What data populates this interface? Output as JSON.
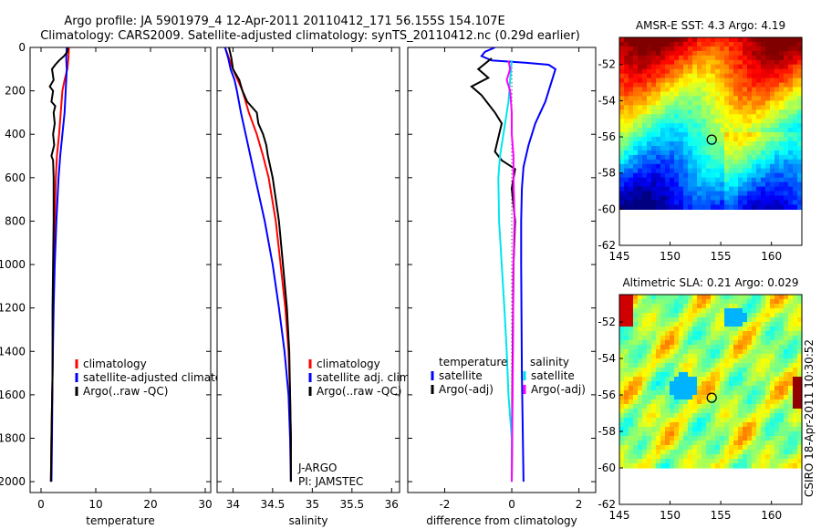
{
  "title": {
    "line1": "Argo profile: JA 5901979_4 12-Apr-2011 20110412_171 56.155S 154.107E",
    "line2": "Climatology: CARS2009. Satellite-adjusted climatology: synTS_20110412.nc (0.29d earlier)"
  },
  "side_label": "CSIRO 18-Apr-2011 10:30:52",
  "colors": {
    "climatology": "#ff0000",
    "satellite": "#0000ff",
    "argo": "#000000",
    "sal_satellite": "#00e5ee",
    "sal_argo": "#ff00ff"
  },
  "chart_data": [
    {
      "type": "line",
      "xlabel": "temperature",
      "ylabel": "",
      "xlim": [
        -2,
        31
      ],
      "ylim": [
        2050,
        0
      ],
      "x_ticks": [
        "0",
        "10",
        "20",
        "30"
      ],
      "x_tick_values": [
        0,
        10,
        20,
        30
      ],
      "y_ticks": [
        "0",
        "200",
        "400",
        "600",
        "800",
        "1000",
        "1200",
        "1400",
        "1600",
        "1800",
        "2000"
      ],
      "y_tick_values": [
        0,
        200,
        400,
        600,
        800,
        1000,
        1200,
        1400,
        1600,
        1800,
        2000
      ],
      "legend": [
        "climatology",
        "satellite-adjusted climatolo",
        "Argo(..raw -QC)"
      ],
      "series": [
        {
          "name": "climatology",
          "color": "#ff0000",
          "points": [
            [
              5.1,
              0
            ],
            [
              5.0,
              50
            ],
            [
              4.8,
              100
            ],
            [
              4.3,
              150
            ],
            [
              3.9,
              200
            ],
            [
              3.6,
              300
            ],
            [
              3.3,
              400
            ],
            [
              2.9,
              500
            ],
            [
              2.7,
              600
            ],
            [
              2.5,
              800
            ],
            [
              2.3,
              1000
            ],
            [
              2.2,
              1200
            ],
            [
              2.1,
              1500
            ],
            [
              1.9,
              1800
            ],
            [
              1.8,
              2000
            ]
          ]
        },
        {
          "name": "satellite-adjusted climatolo",
          "color": "#0000ff",
          "points": [
            [
              4.7,
              0
            ],
            [
              4.6,
              50
            ],
            [
              4.7,
              100
            ],
            [
              4.6,
              150
            ],
            [
              4.5,
              200
            ],
            [
              4.3,
              300
            ],
            [
              3.9,
              400
            ],
            [
              3.5,
              500
            ],
            [
              3.2,
              600
            ],
            [
              2.8,
              800
            ],
            [
              2.5,
              1000
            ],
            [
              2.3,
              1200
            ],
            [
              2.1,
              1500
            ],
            [
              2.0,
              1800
            ],
            [
              1.9,
              2000
            ]
          ]
        },
        {
          "name": "Argo(..raw -QC)",
          "color": "#000000",
          "points": [
            [
              4.9,
              0
            ],
            [
              4.8,
              20
            ],
            [
              4.2,
              40
            ],
            [
              3.3,
              60
            ],
            [
              2.6,
              80
            ],
            [
              2.0,
              100
            ],
            [
              2.3,
              150
            ],
            [
              1.6,
              180
            ],
            [
              2.2,
              200
            ],
            [
              1.9,
              250
            ],
            [
              2.6,
              270
            ],
            [
              2.3,
              300
            ],
            [
              2.5,
              350
            ],
            [
              2.2,
              400
            ],
            [
              2.4,
              450
            ],
            [
              1.9,
              500
            ],
            [
              2.2,
              520
            ],
            [
              2.3,
              600
            ],
            [
              2.3,
              800
            ],
            [
              2.2,
              1000
            ],
            [
              2.1,
              1200
            ],
            [
              2.1,
              1500
            ],
            [
              1.9,
              1800
            ],
            [
              1.8,
              2000
            ]
          ]
        }
      ]
    },
    {
      "type": "line",
      "xlabel": "salinity",
      "xlim": [
        33.8,
        36.1
      ],
      "ylim": [
        2050,
        0
      ],
      "x_ticks": [
        "34",
        "34.5",
        "35",
        "35.5",
        "36"
      ],
      "x_tick_values": [
        34,
        34.5,
        35,
        35.5,
        36
      ],
      "legend": [
        "climatology",
        "satellite adj. clim.",
        "Argo(..raw -QC)"
      ],
      "annotations": [
        "J-ARGO",
        "PI: JAMSTEC"
      ],
      "series": [
        {
          "name": "climatology",
          "color": "#ff0000",
          "points": [
            [
              33.9,
              0
            ],
            [
              33.95,
              50
            ],
            [
              34.0,
              100
            ],
            [
              34.06,
              150
            ],
            [
              34.12,
              200
            ],
            [
              34.2,
              300
            ],
            [
              34.3,
              400
            ],
            [
              34.38,
              500
            ],
            [
              34.45,
              600
            ],
            [
              34.54,
              800
            ],
            [
              34.6,
              1000
            ],
            [
              34.66,
              1200
            ],
            [
              34.7,
              1400
            ],
            [
              34.72,
              1600
            ],
            [
              34.73,
              1800
            ],
            [
              34.73,
              2000
            ]
          ]
        },
        {
          "name": "satellite adj. clim.",
          "color": "#0000ff",
          "points": [
            [
              33.9,
              0
            ],
            [
              33.94,
              50
            ],
            [
              33.97,
              100
            ],
            [
              34.02,
              150
            ],
            [
              34.05,
              200
            ],
            [
              34.1,
              300
            ],
            [
              34.16,
              400
            ],
            [
              34.22,
              500
            ],
            [
              34.28,
              600
            ],
            [
              34.4,
              800
            ],
            [
              34.5,
              1000
            ],
            [
              34.58,
              1200
            ],
            [
              34.65,
              1400
            ],
            [
              34.7,
              1600
            ],
            [
              34.72,
              1800
            ],
            [
              34.73,
              2000
            ]
          ]
        },
        {
          "name": "Argo(..raw -QC)",
          "color": "#000000",
          "points": [
            [
              33.95,
              0
            ],
            [
              33.98,
              50
            ],
            [
              34.0,
              100
            ],
            [
              34.08,
              150
            ],
            [
              34.12,
              200
            ],
            [
              34.18,
              250
            ],
            [
              34.3,
              300
            ],
            [
              34.32,
              350
            ],
            [
              34.38,
              400
            ],
            [
              34.42,
              450
            ],
            [
              34.44,
              500
            ],
            [
              34.5,
              600
            ],
            [
              34.58,
              800
            ],
            [
              34.63,
              1000
            ],
            [
              34.68,
              1200
            ],
            [
              34.71,
              1400
            ],
            [
              34.72,
              1600
            ],
            [
              34.73,
              1800
            ],
            [
              34.73,
              2000
            ]
          ]
        }
      ]
    },
    {
      "type": "line",
      "xlabel": "difference from climatology",
      "xlim": [
        -3.1,
        2.5
      ],
      "ylim": [
        2050,
        0
      ],
      "x_ticks": [
        "-2",
        "0",
        "2"
      ],
      "x_tick_values": [
        -2,
        0,
        2
      ],
      "legend_groups": [
        {
          "title": "temperature",
          "entries": [
            "satellite",
            "Argo(-adj)"
          ]
        },
        {
          "title": "salinity",
          "entries": [
            "satellite",
            "Argo(-adj)"
          ]
        }
      ],
      "series": [
        {
          "name": "temperature satellite",
          "color": "#0000ff",
          "points": [
            [
              -0.5,
              0
            ],
            [
              -0.8,
              20
            ],
            [
              -0.9,
              40
            ],
            [
              -0.6,
              60
            ],
            [
              0.4,
              70
            ],
            [
              1.1,
              80
            ],
            [
              1.3,
              100
            ],
            [
              1.2,
              150
            ],
            [
              1.0,
              250
            ],
            [
              0.7,
              350
            ],
            [
              0.5,
              450
            ],
            [
              0.35,
              550
            ],
            [
              0.3,
              650
            ],
            [
              0.28,
              800
            ],
            [
              0.28,
              1000
            ],
            [
              0.3,
              1500
            ],
            [
              0.35,
              2000
            ]
          ]
        },
        {
          "name": "temperature Argo(-adj)",
          "color": "#000000",
          "points": [
            [
              -0.6,
              50
            ],
            [
              -1.0,
              100
            ],
            [
              -0.7,
              140
            ],
            [
              -1.2,
              180
            ],
            [
              -0.9,
              220
            ],
            [
              -0.5,
              300
            ],
            [
              -0.3,
              350
            ],
            [
              -0.5,
              480
            ],
            [
              -0.3,
              520
            ],
            [
              0.1,
              560
            ],
            [
              0.0,
              650
            ],
            [
              0.1,
              800
            ],
            [
              0.05,
              1000
            ],
            [
              0.02,
              1500
            ],
            [
              0.0,
              2000
            ]
          ]
        },
        {
          "name": "salinity satellite",
          "color": "#00e5ee",
          "points": [
            [
              0.0,
              60
            ],
            [
              -0.05,
              150
            ],
            [
              -0.1,
              250
            ],
            [
              -0.2,
              350
            ],
            [
              -0.3,
              450
            ],
            [
              -0.35,
              500
            ],
            [
              -0.4,
              600
            ],
            [
              -0.38,
              800
            ],
            [
              -0.3,
              1000
            ],
            [
              -0.22,
              1200
            ],
            [
              -0.15,
              1400
            ],
            [
              -0.1,
              1600
            ],
            [
              0.0,
              1800
            ],
            [
              0.0,
              2000
            ]
          ]
        },
        {
          "name": "salinity Argo(-adj)",
          "color": "#ff00ff",
          "points": [
            [
              -0.1,
              60
            ],
            [
              -0.05,
              100
            ],
            [
              -0.15,
              150
            ],
            [
              -0.05,
              200
            ],
            [
              0.0,
              300
            ],
            [
              0.0,
              400
            ],
            [
              0.05,
              500
            ],
            [
              0.05,
              600
            ],
            [
              0.08,
              800
            ],
            [
              0.05,
              1000
            ],
            [
              0.03,
              1500
            ],
            [
              0.0,
              2000
            ]
          ]
        }
      ]
    },
    {
      "type": "heatmap",
      "title": "AMSR-E SST: 4.3 Argo: 4.19",
      "xlim": [
        145,
        163
      ],
      "ylim": [
        -62,
        -50.5
      ],
      "x_ticks": [
        "145",
        "150",
        "155",
        "160"
      ],
      "x_tick_values": [
        145,
        150,
        155,
        160
      ],
      "y_ticks": [
        "-52",
        "-54",
        "-56",
        "-58",
        "-60",
        "-62"
      ],
      "y_tick_values": [
        -52,
        -54,
        -56,
        -58,
        -60,
        -62
      ],
      "marker": {
        "lon": 154.107,
        "lat": -56.155
      },
      "data_extent_lat": [
        -60,
        -50.5
      ]
    },
    {
      "type": "heatmap",
      "title": "Altimetric SLA: 0.21 Argo: 0.029",
      "xlim": [
        145,
        163
      ],
      "ylim": [
        -62,
        -50.5
      ],
      "x_ticks": [
        "145",
        "150",
        "155",
        "160"
      ],
      "x_tick_values": [
        145,
        150,
        155,
        160
      ],
      "y_ticks": [
        "-52",
        "-54",
        "-56",
        "-58",
        "-60",
        "-62"
      ],
      "y_tick_values": [
        -52,
        -54,
        -56,
        -58,
        -60,
        -62
      ],
      "marker": {
        "lon": 154.107,
        "lat": -56.155
      },
      "data_extent_lat": [
        -60,
        -50.5
      ]
    }
  ]
}
